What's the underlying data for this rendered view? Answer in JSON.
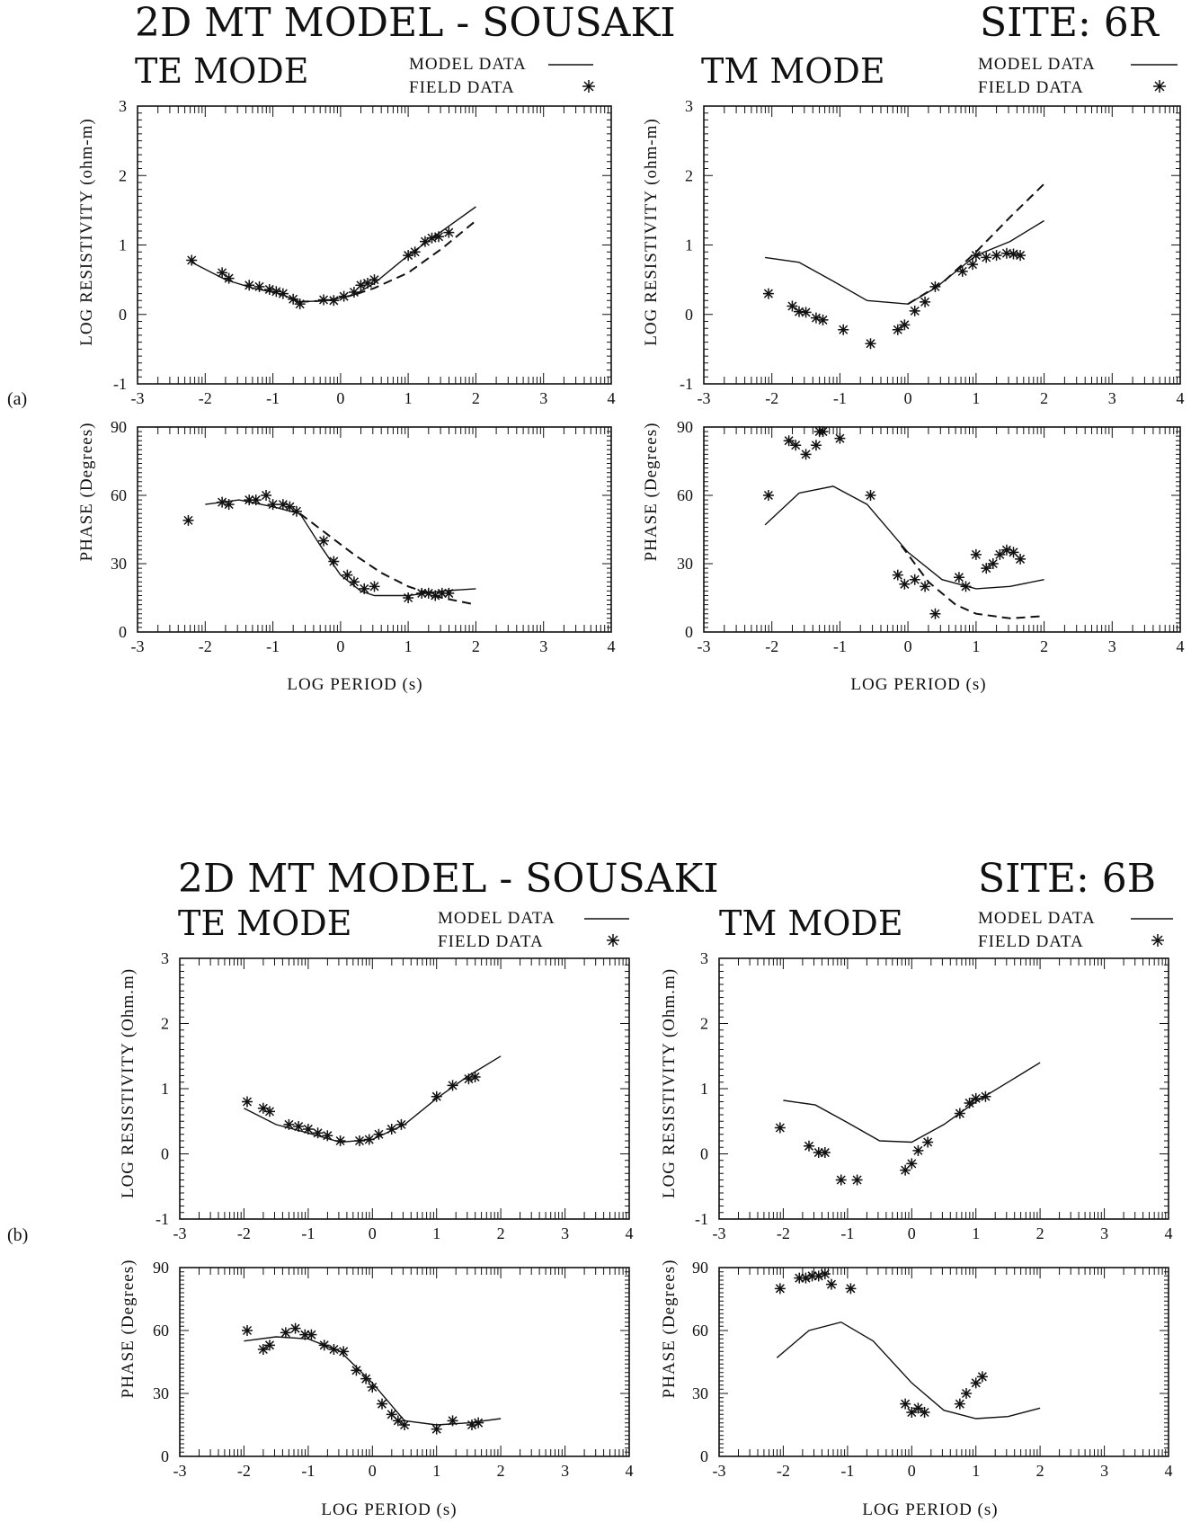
{
  "figures": [
    {
      "panel_label": "(a)",
      "title": "2D MT MODEL - SOUSAKI",
      "site": "SITE: 6R",
      "te": {
        "mode_title": "TE MODE",
        "legend_model": "MODEL DATA",
        "legend_field": "FIELD DATA",
        "res_ylabel": "LOG RESISTIVITY (ohm-m)"
      },
      "tm": {
        "mode_title": "TM MODE",
        "legend_model": "MODEL DATA",
        "legend_field": "FIELD DATA",
        "res_ylabel": "LOG RESISTIVITY (ohm-m)"
      },
      "phase_ylabel": "PHASE (Degrees)",
      "xlabel": "LOG PERIOD (s)"
    },
    {
      "panel_label": "(b)",
      "title": "2D MT MODEL - SOUSAKI",
      "site": "SITE: 6B",
      "te": {
        "mode_title": "TE MODE",
        "legend_model": "MODEL DATA",
        "legend_field": "FIELD DATA",
        "res_ylabel": "LOG RESISTIVITY (Ohm.m)"
      },
      "tm": {
        "mode_title": "TM MODE",
        "legend_model": "MODEL DATA",
        "legend_field": "FIELD DATA",
        "res_ylabel": "LOG RESISTIVITY (Ohm.m)"
      },
      "phase_ylabel": "PHASE (Degrees)",
      "xlabel": "LOG PERIOD (s)"
    }
  ],
  "chart_data": [
    {
      "id": "a-te-res",
      "type": "line",
      "xlim": [
        -3,
        4
      ],
      "ylim": [
        -1,
        3
      ],
      "xticks": [
        "-3",
        "-2",
        "-1",
        "0",
        "1",
        "2",
        "3",
        "4"
      ],
      "yticks": [
        "-1",
        "0",
        "1",
        "2",
        "3"
      ],
      "series": [
        {
          "style": "solid",
          "x": [
            -2.2,
            -1.7,
            -1.3,
            -0.9,
            -0.6,
            -0.2,
            0.2,
            0.5,
            1.0,
            1.5,
            2.0
          ],
          "y": [
            0.75,
            0.5,
            0.38,
            0.3,
            0.18,
            0.2,
            0.28,
            0.45,
            0.85,
            1.2,
            1.55
          ]
        },
        {
          "style": "dashed",
          "x": [
            -0.6,
            -0.2,
            0.2,
            0.5,
            1.0,
            1.5,
            2.0
          ],
          "y": [
            0.18,
            0.2,
            0.28,
            0.38,
            0.6,
            0.95,
            1.35
          ]
        },
        {
          "style": "stars",
          "x": [
            -2.2,
            -1.75,
            -1.65,
            -1.35,
            -1.2,
            -1.05,
            -0.95,
            -0.85,
            -0.7,
            -0.6,
            -0.25,
            -0.1,
            0.05,
            0.2,
            0.3,
            0.4,
            0.5,
            1.0,
            1.1,
            1.25,
            1.35,
            1.45,
            1.6
          ],
          "y": [
            0.78,
            0.6,
            0.52,
            0.42,
            0.4,
            0.36,
            0.33,
            0.3,
            0.22,
            0.15,
            0.21,
            0.2,
            0.26,
            0.32,
            0.42,
            0.45,
            0.5,
            0.85,
            0.9,
            1.05,
            1.1,
            1.12,
            1.18
          ]
        }
      ]
    },
    {
      "id": "a-te-phase",
      "type": "line",
      "xlim": [
        -3,
        4
      ],
      "ylim": [
        0,
        90
      ],
      "xticks": [
        "-3",
        "-2",
        "-1",
        "0",
        "1",
        "2",
        "3",
        "4"
      ],
      "yticks": [
        "0",
        "30",
        "60",
        "90"
      ],
      "series": [
        {
          "style": "solid",
          "x": [
            -2.0,
            -1.5,
            -1.0,
            -0.6,
            -0.3,
            0.0,
            0.3,
            0.5,
            1.0,
            1.5,
            2.0
          ],
          "y": [
            56,
            58,
            55,
            52,
            38,
            25,
            18,
            16,
            16,
            18,
            19
          ]
        },
        {
          "style": "dashed",
          "x": [
            -0.6,
            -0.2,
            0.2,
            0.6,
            1.0,
            1.5,
            2.0
          ],
          "y": [
            52,
            43,
            34,
            26,
            20,
            15,
            12
          ]
        },
        {
          "style": "stars",
          "x": [
            -2.25,
            -1.75,
            -1.65,
            -1.35,
            -1.25,
            -1.1,
            -1.0,
            -0.85,
            -0.75,
            -0.65,
            -0.25,
            -0.1,
            0.1,
            0.2,
            0.35,
            0.5,
            1.0,
            1.2,
            1.3,
            1.4,
            1.5,
            1.6
          ],
          "y": [
            49,
            57,
            56,
            58,
            58,
            60,
            56,
            56,
            55,
            53,
            40,
            31,
            25,
            22,
            19,
            20,
            15,
            17,
            17,
            16,
            17,
            17
          ]
        }
      ]
    },
    {
      "id": "a-tm-res",
      "type": "line",
      "xlim": [
        -3,
        4
      ],
      "ylim": [
        -1,
        3
      ],
      "xticks": [
        "-3",
        "-2",
        "-1",
        "0",
        "1",
        "2",
        "3",
        "4"
      ],
      "yticks": [
        "-1",
        "0",
        "1",
        "2",
        "3"
      ],
      "series": [
        {
          "style": "solid",
          "x": [
            -2.1,
            -1.6,
            -1.1,
            -0.6,
            0.0,
            0.4,
            1.0,
            1.5,
            2.0
          ],
          "y": [
            0.82,
            0.75,
            0.48,
            0.2,
            0.15,
            0.38,
            0.85,
            1.05,
            1.35
          ]
        },
        {
          "style": "dashed",
          "x": [
            0.0,
            0.5,
            1.0,
            1.5,
            2.0
          ],
          "y": [
            0.15,
            0.45,
            0.9,
            1.4,
            1.88
          ]
        },
        {
          "style": "stars",
          "x": [
            -2.05,
            -1.7,
            -1.6,
            -1.5,
            -1.35,
            -1.25,
            -0.95,
            -0.55,
            -0.15,
            -0.05,
            0.1,
            0.25,
            0.4,
            0.8,
            0.95,
            1.0,
            1.15,
            1.3,
            1.45,
            1.55,
            1.65
          ],
          "y": [
            0.3,
            0.12,
            0.04,
            0.03,
            -0.05,
            -0.08,
            -0.22,
            -0.42,
            -0.22,
            -0.15,
            0.05,
            0.18,
            0.4,
            0.62,
            0.72,
            0.85,
            0.82,
            0.85,
            0.88,
            0.87,
            0.85
          ]
        }
      ]
    },
    {
      "id": "a-tm-phase",
      "type": "line",
      "xlim": [
        -3,
        4
      ],
      "ylim": [
        0,
        90
      ],
      "xticks": [
        "-3",
        "-2",
        "-1",
        "0",
        "1",
        "2",
        "3",
        "4"
      ],
      "yticks": [
        "0",
        "30",
        "60",
        "90"
      ],
      "series": [
        {
          "style": "solid",
          "x": [
            -2.1,
            -1.6,
            -1.1,
            -0.6,
            0.0,
            0.5,
            1.0,
            1.5,
            2.0
          ],
          "y": [
            47,
            61,
            64,
            56,
            35,
            23,
            19,
            20,
            23
          ]
        },
        {
          "style": "dashed",
          "x": [
            -0.1,
            0.3,
            0.7,
            1.0,
            1.5,
            2.0
          ],
          "y": [
            38,
            22,
            12,
            8,
            6,
            7
          ]
        },
        {
          "style": "stars",
          "x": [
            -2.05,
            -1.75,
            -1.65,
            -1.5,
            -1.35,
            -1.3,
            -1.25,
            -1.0,
            -0.55,
            -0.15,
            -0.05,
            0.1,
            0.25,
            0.4,
            0.75,
            0.85,
            1.0,
            1.15,
            1.25,
            1.35,
            1.45,
            1.55,
            1.65
          ],
          "y": [
            60,
            84,
            82,
            78,
            82,
            88,
            88,
            85,
            60,
            25,
            21,
            23,
            20,
            8,
            24,
            20,
            34,
            28,
            30,
            34,
            36,
            35,
            32
          ]
        }
      ]
    },
    {
      "id": "b-te-res",
      "type": "line",
      "xlim": [
        -3,
        4
      ],
      "ylim": [
        -1,
        3
      ],
      "xticks": [
        "-3",
        "-2",
        "-1",
        "0",
        "1",
        "2",
        "3",
        "4"
      ],
      "yticks": [
        "-1",
        "0",
        "1",
        "2",
        "3"
      ],
      "series": [
        {
          "style": "solid",
          "x": [
            -2.0,
            -1.5,
            -1.0,
            -0.5,
            0.0,
            0.5,
            1.0,
            1.5,
            2.0
          ],
          "y": [
            0.7,
            0.45,
            0.32,
            0.18,
            0.22,
            0.45,
            0.85,
            1.2,
            1.5
          ]
        },
        {
          "style": "stars",
          "x": [
            -1.95,
            -1.7,
            -1.6,
            -1.3,
            -1.15,
            -1.0,
            -0.85,
            -0.7,
            -0.5,
            -0.2,
            -0.05,
            0.1,
            0.3,
            0.45,
            1.0,
            1.25,
            1.5,
            1.6
          ],
          "y": [
            0.8,
            0.7,
            0.65,
            0.45,
            0.42,
            0.38,
            0.32,
            0.28,
            0.2,
            0.2,
            0.22,
            0.3,
            0.38,
            0.45,
            0.88,
            1.05,
            1.15,
            1.18
          ]
        }
      ]
    },
    {
      "id": "b-te-phase",
      "type": "line",
      "xlim": [
        -3,
        4
      ],
      "ylim": [
        0,
        90
      ],
      "xticks": [
        "-3",
        "-2",
        "-1",
        "0",
        "1",
        "2",
        "3",
        "4"
      ],
      "yticks": [
        "0",
        "30",
        "60",
        "90"
      ],
      "series": [
        {
          "style": "solid",
          "x": [
            -2.0,
            -1.5,
            -1.0,
            -0.5,
            0.0,
            0.5,
            1.0,
            1.5,
            2.0
          ],
          "y": [
            55,
            57,
            56,
            50,
            35,
            17,
            15,
            16,
            18
          ]
        },
        {
          "style": "stars",
          "x": [
            -1.95,
            -1.7,
            -1.6,
            -1.35,
            -1.2,
            -1.05,
            -0.95,
            -0.75,
            -0.6,
            -0.45,
            -0.25,
            -0.1,
            0.0,
            0.15,
            0.3,
            0.4,
            0.5,
            1.0,
            1.25,
            1.55,
            1.65
          ],
          "y": [
            60,
            51,
            53,
            59,
            61,
            58,
            58,
            53,
            51,
            50,
            41,
            37,
            33,
            25,
            20,
            17,
            15,
            13,
            17,
            15,
            16
          ]
        }
      ]
    },
    {
      "id": "b-tm-res",
      "type": "line",
      "xlim": [
        -3,
        4
      ],
      "ylim": [
        -1,
        3
      ],
      "xticks": [
        "-3",
        "-2",
        "-1",
        "0",
        "1",
        "2",
        "3",
        "4"
      ],
      "yticks": [
        "-1",
        "0",
        "1",
        "2",
        "3"
      ],
      "series": [
        {
          "style": "solid",
          "x": [
            -2.0,
            -1.5,
            -1.0,
            -0.5,
            0.0,
            0.5,
            1.0,
            1.5,
            2.0
          ],
          "y": [
            0.82,
            0.75,
            0.48,
            0.2,
            0.18,
            0.45,
            0.8,
            1.1,
            1.4
          ]
        },
        {
          "style": "stars",
          "x": [
            -2.05,
            -1.6,
            -1.45,
            -1.35,
            -1.1,
            -0.85,
            -0.1,
            0.0,
            0.1,
            0.25,
            0.75,
            0.9,
            1.0,
            1.15
          ],
          "y": [
            0.4,
            0.12,
            0.02,
            0.02,
            -0.4,
            -0.4,
            -0.25,
            -0.15,
            0.05,
            0.18,
            0.62,
            0.78,
            0.85,
            0.88
          ]
        }
      ]
    },
    {
      "id": "b-tm-phase",
      "type": "line",
      "xlim": [
        -3,
        4
      ],
      "ylim": [
        0,
        90
      ],
      "xticks": [
        "-3",
        "-2",
        "-1",
        "0",
        "1",
        "2",
        "3",
        "4"
      ],
      "yticks": [
        "0",
        "30",
        "60",
        "90"
      ],
      "series": [
        {
          "style": "solid",
          "x": [
            -2.1,
            -1.6,
            -1.1,
            -0.6,
            0.0,
            0.5,
            1.0,
            1.5,
            2.0
          ],
          "y": [
            47,
            60,
            64,
            55,
            35,
            22,
            18,
            19,
            23
          ]
        },
        {
          "style": "stars",
          "x": [
            -2.05,
            -1.75,
            -1.65,
            -1.55,
            -1.45,
            -1.35,
            -1.25,
            -0.95,
            -0.1,
            0.0,
            0.1,
            0.2,
            0.75,
            0.85,
            1.0,
            1.1
          ],
          "y": [
            80,
            85,
            85,
            86,
            86,
            87,
            82,
            80,
            25,
            21,
            23,
            21,
            25,
            30,
            35,
            38
          ]
        }
      ]
    }
  ]
}
